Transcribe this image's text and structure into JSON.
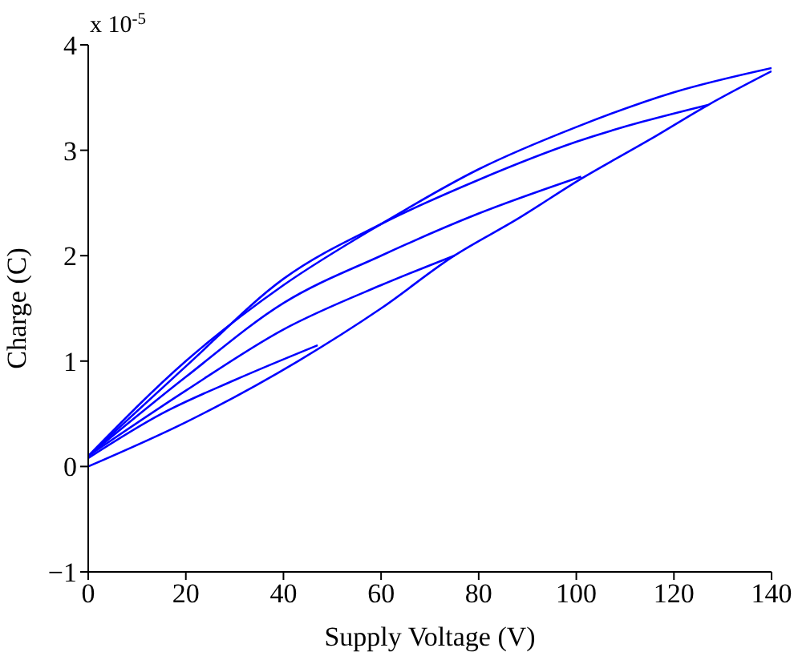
{
  "chart_data": {
    "type": "line",
    "xlabel": "Supply Voltage (V)",
    "ylabel": "Charge (C)",
    "annotations": [
      "x 10$^{-5}$"
    ],
    "series": [
      {
        "color": "#0000ff",
        "x": [
          0,
          20,
          43,
          60,
          75,
          88,
          101,
          115,
          127,
          140
        ],
        "values": [
          0,
          0.42,
          1.0,
          1.5,
          2.0,
          2.35,
          2.73,
          3.1,
          3.43,
          3.75
        ]
      },
      {
        "color": "#0000ff",
        "x": [
          0,
          15,
          30,
          47
        ],
        "values": [
          0.08,
          0.5,
          0.82,
          1.15
        ]
      },
      {
        "color": "#0000ff",
        "x": [
          0,
          20,
          40,
          60,
          75
        ],
        "values": [
          0.1,
          0.72,
          1.3,
          1.72,
          2.0
        ]
      },
      {
        "color": "#0000ff",
        "x": [
          0,
          20,
          40,
          60,
          80,
          101
        ],
        "values": [
          0.1,
          0.85,
          1.55,
          2.0,
          2.4,
          2.75
        ]
      },
      {
        "color": "#0000ff",
        "x": [
          0,
          20,
          40,
          60,
          80,
          100,
          127
        ],
        "values": [
          0.1,
          0.95,
          1.78,
          2.3,
          2.72,
          3.08,
          3.43
        ]
      },
      {
        "color": "#0000ff",
        "x": [
          0,
          20,
          40,
          60,
          80,
          100,
          120,
          140
        ],
        "values": [
          0.1,
          1.0,
          1.72,
          2.3,
          2.82,
          3.22,
          3.55,
          3.78
        ]
      }
    ],
    "xlim": [
      0,
      140
    ],
    "xticks": [
      0,
      20,
      40,
      60,
      80,
      100,
      120,
      140
    ],
    "ylim": [
      -1,
      4
    ],
    "yticks": [
      -1,
      0,
      1,
      2,
      3,
      4
    ],
    "grid": false,
    "legend": false,
    "marker": "none",
    "line_style": "solid"
  }
}
